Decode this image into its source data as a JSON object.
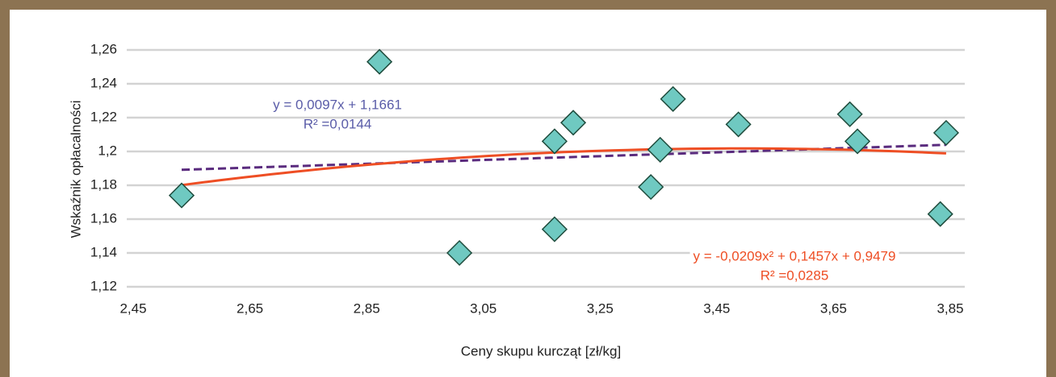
{
  "chart_data": {
    "type": "scatter",
    "x_label": "Ceny skupu kurcząt [zł/kg]",
    "y_label": "Wskaźnik opłacalności",
    "x": [
      2.533,
      2.872,
      3.009,
      3.172,
      3.172,
      3.204,
      3.337,
      3.353,
      3.375,
      3.487,
      3.678,
      3.691,
      3.833,
      3.843
    ],
    "series": [
      {
        "color": "#6fc9c1",
        "values": [
          1.174,
          1.253,
          1.14,
          1.154,
          1.206,
          1.217,
          1.179,
          1.201,
          1.231,
          1.216,
          1.222,
          1.206,
          1.163,
          1.211
        ]
      }
    ],
    "xlim": [
      2.45,
      3.85
    ],
    "xticks": [
      {
        "value": 2.45,
        "label": "2,45"
      },
      {
        "value": 2.65,
        "label": "2,65"
      },
      {
        "value": 2.85,
        "label": "2,85"
      },
      {
        "value": 3.05,
        "label": "3,05"
      },
      {
        "value": 3.25,
        "label": "3,25"
      },
      {
        "value": 3.45,
        "label": "3,45"
      },
      {
        "value": 3.65,
        "label": "3,65"
      },
      {
        "value": 3.85,
        "label": "3,85"
      }
    ],
    "ylim": [
      1.12,
      1.26
    ],
    "yticks": [
      {
        "value": 1.12,
        "label": "1,12"
      },
      {
        "value": 1.14,
        "label": "1,14"
      },
      {
        "value": 1.16,
        "label": "1,16"
      },
      {
        "value": 1.18,
        "label": "1,18"
      },
      {
        "value": 1.2,
        "label": "1,2"
      },
      {
        "value": 1.22,
        "label": "1,22"
      },
      {
        "value": 1.24,
        "label": "1,24"
      },
      {
        "value": 1.26,
        "label": "1,26"
      }
    ],
    "grid": true,
    "trendlines": [
      {
        "degree": 1,
        "color": "#5a2b7e",
        "dashed": true,
        "equation": "y = 0,0097x + 1,1661",
        "r2": "R² =0,0144",
        "label_color": "#5a5ca8"
      },
      {
        "degree": 2,
        "color": "#ee4e24",
        "dashed": false,
        "equation": "y = -0,0209x² + 0,1457x + 0,9479",
        "r2": "R² =0,0285",
        "label_color": "#ee4e24"
      }
    ]
  }
}
